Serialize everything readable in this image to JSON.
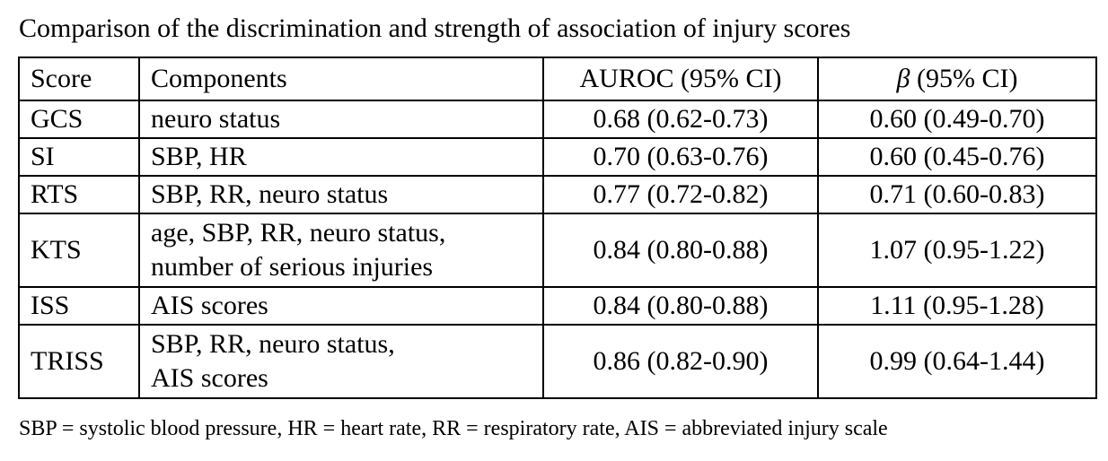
{
  "title": "Comparison of the discrimination and strength of association of injury scores",
  "table": {
    "headers": {
      "score": "Score",
      "components": "Components",
      "auroc": "AUROC (95% CI)",
      "beta_symbol": "β",
      "beta_rest": " (95% CI)"
    },
    "rows": [
      {
        "score": "GCS",
        "components": [
          "neuro status"
        ],
        "auroc": "0.68 (0.62-0.73)",
        "beta": "0.60 (0.49-0.70)"
      },
      {
        "score": "SI",
        "components": [
          "SBP, HR"
        ],
        "auroc": "0.70 (0.63-0.76)",
        "beta": "0.60 (0.45-0.76)"
      },
      {
        "score": "RTS",
        "components": [
          "SBP, RR, neuro status"
        ],
        "auroc": "0.77 (0.72-0.82)",
        "beta": "0.71 (0.60-0.83)"
      },
      {
        "score": "KTS",
        "components": [
          "age, SBP, RR, neuro status,",
          "number of serious injuries"
        ],
        "auroc": "0.84 (0.80-0.88)",
        "beta": "1.07 (0.95-1.22)"
      },
      {
        "score": "ISS",
        "components": [
          "AIS scores"
        ],
        "auroc": "0.84 (0.80-0.88)",
        "beta": "1.11 (0.95-1.28)"
      },
      {
        "score": "TRISS",
        "components": [
          "SBP, RR, neuro status,",
          "AIS scores"
        ],
        "auroc": "0.86 (0.82-0.90)",
        "beta": "0.99 (0.64-1.44)"
      }
    ]
  },
  "footnote": "SBP = systolic blood pressure, HR = heart rate, RR = respiratory rate, AIS = abbreviated injury scale"
}
